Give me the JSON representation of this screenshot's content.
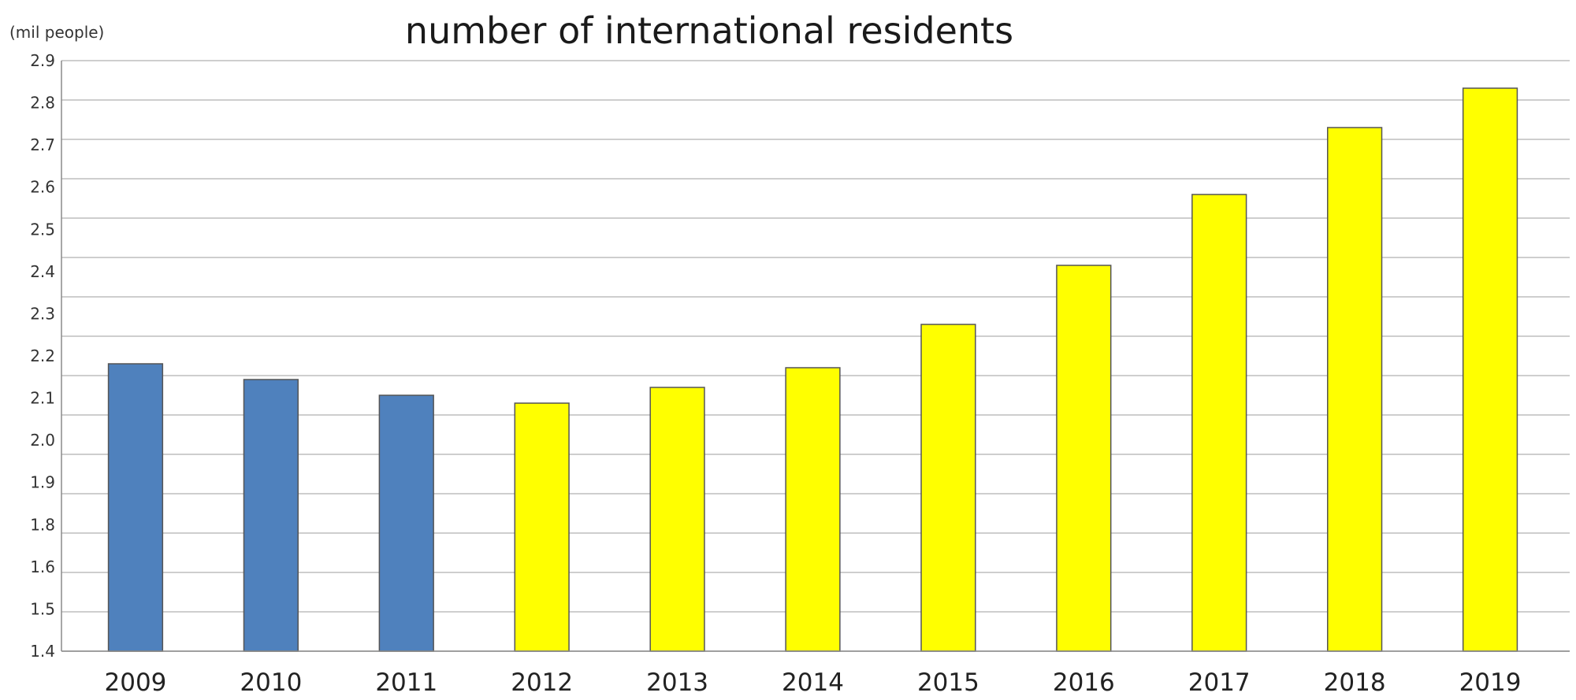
{
  "chart_data": {
    "type": "bar",
    "title": "number of international residents",
    "ylabel": "(mil people)",
    "xlabel": "",
    "categories": [
      "2009",
      "2010",
      "2011",
      "2012",
      "2013",
      "2014",
      "2015",
      "2016",
      "2017",
      "2018",
      "2019"
    ],
    "values": [
      2.13,
      2.09,
      2.05,
      2.03,
      2.07,
      2.12,
      2.23,
      2.38,
      2.56,
      2.73,
      2.83
    ],
    "bar_colors": [
      "#4f81bd",
      "#4f81bd",
      "#4f81bd",
      "#ffff00",
      "#ffff00",
      "#ffff00",
      "#ffff00",
      "#ffff00",
      "#ffff00",
      "#ffff00",
      "#ffff00"
    ],
    "ylim": [
      1.4,
      2.9
    ],
    "yticks": [
      "1.4",
      "1.5",
      "1.6",
      "1.8",
      "1.9",
      "2.0",
      "2.1",
      "2.2",
      "2.3",
      "2.4",
      "2.5",
      "2.6",
      "2.7",
      "2.8",
      "2.9"
    ],
    "grid": true,
    "legend": false
  }
}
